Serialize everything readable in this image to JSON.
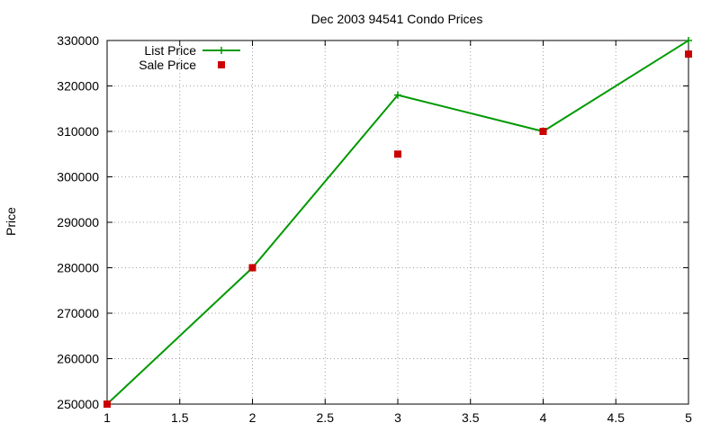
{
  "chart_data": {
    "type": "line",
    "title": "Dec 2003 94541 Condo Prices",
    "xlabel": "",
    "ylabel": "Price",
    "xlim": [
      1,
      5
    ],
    "ylim": [
      250000,
      330000
    ],
    "x_ticks": [
      1,
      1.5,
      2,
      2.5,
      3,
      3.5,
      4,
      4.5,
      5
    ],
    "x_tick_labels": [
      "1",
      "1.5",
      "2",
      "2.5",
      "3",
      "3.5",
      "4",
      "4.5",
      "5"
    ],
    "y_ticks": [
      250000,
      260000,
      270000,
      280000,
      290000,
      300000,
      310000,
      320000,
      330000
    ],
    "y_tick_labels": [
      "250000",
      "260000",
      "270000",
      "280000",
      "290000",
      "300000",
      "310000",
      "320000",
      "330000"
    ],
    "grid": true,
    "legend_position": "top-left",
    "series": [
      {
        "name": "List Price",
        "style": "linespoints",
        "color": "#009900",
        "marker": "plus",
        "x": [
          1,
          2,
          3,
          4,
          5
        ],
        "y": [
          250000,
          280000,
          318000,
          310000,
          330000
        ]
      },
      {
        "name": "Sale Price",
        "style": "points",
        "color": "#cc0000",
        "marker": "square",
        "x": [
          1,
          2,
          3,
          4,
          5
        ],
        "y": [
          250000,
          280000,
          305000,
          310000,
          327000
        ]
      }
    ]
  }
}
